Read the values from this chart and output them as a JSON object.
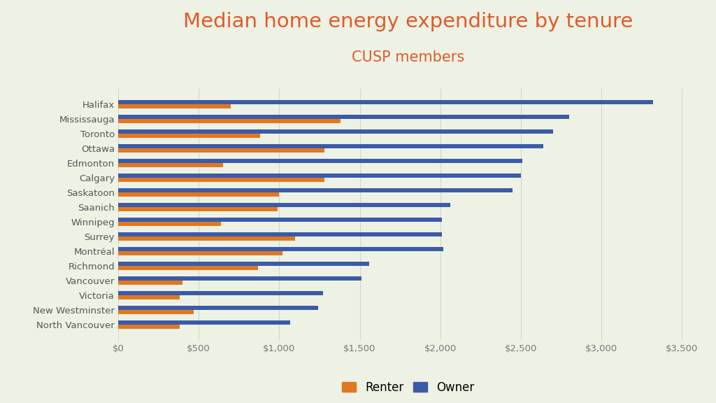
{
  "title": "Median home energy expenditure by tenure",
  "subtitle": "CUSP members",
  "title_color": "#E05A2B",
  "subtitle_color": "#E05A2B",
  "background_color": "#EDF2E5",
  "categories": [
    "Halifax",
    "Mississauga",
    "Toronto",
    "Ottawa",
    "Edmonton",
    "Calgary",
    "Saskatoon",
    "Saanich",
    "Winnipeg",
    "Surrey",
    "Montréal",
    "Richmond",
    "Vancouver",
    "Victoria",
    "New Westminster",
    "North Vancouver"
  ],
  "renter_values": [
    700,
    1380,
    880,
    1280,
    650,
    1280,
    1000,
    990,
    640,
    1100,
    1020,
    870,
    400,
    380,
    470,
    380
  ],
  "owner_values": [
    3320,
    2800,
    2700,
    2640,
    2510,
    2500,
    2450,
    2060,
    2010,
    2010,
    2020,
    1560,
    1510,
    1270,
    1240,
    1070
  ],
  "renter_color": "#E07820",
  "owner_color": "#3B5BA8",
  "xlim": [
    0,
    3600
  ],
  "xtick_values": [
    0,
    500,
    1000,
    1500,
    2000,
    2500,
    3000,
    3500
  ],
  "xtick_labels": [
    "$0",
    "$500",
    "$1,000",
    "$1,500",
    "$2,000",
    "$2,500",
    "$3,000",
    "$3,500"
  ],
  "bar_height": 0.28,
  "bar_gap": 0.02,
  "legend_labels": [
    "Renter",
    "Owner"
  ],
  "grid_color": "#d0d8c8",
  "yticklabel_color": "#555555",
  "xticklabel_color": "#777777"
}
